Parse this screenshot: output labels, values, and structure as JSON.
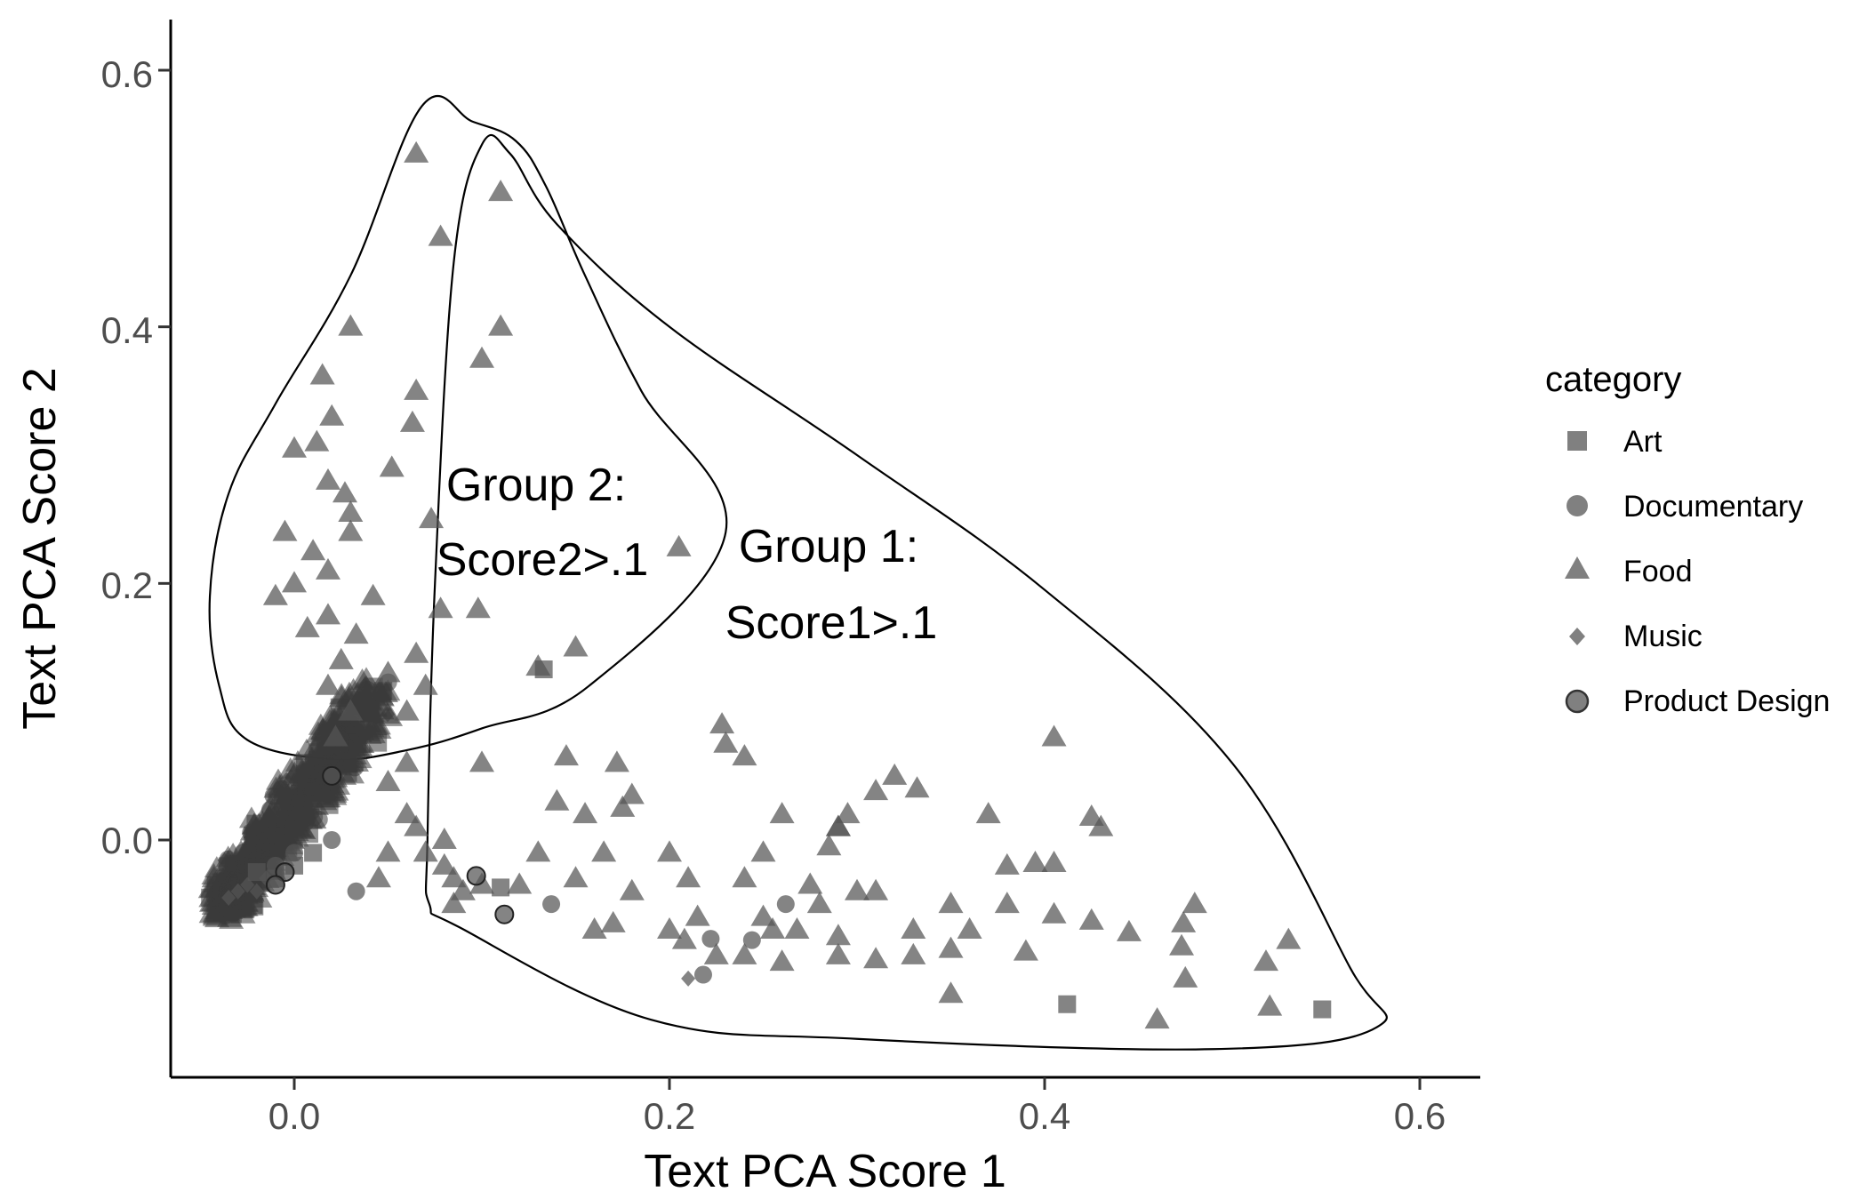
{
  "chart_data": {
    "type": "scatter",
    "xlabel": "Text PCA Score 1",
    "ylabel": "Text PCA Score 2",
    "xlim": [
      -0.07,
      0.63
    ],
    "ylim": [
      -0.18,
      0.64
    ],
    "xticks": [
      0.0,
      0.2,
      0.4,
      0.6
    ],
    "yticks": [
      0.0,
      0.2,
      0.4,
      0.6
    ],
    "xtick_labels": [
      "0.0",
      "0.2",
      "0.4",
      "0.6"
    ],
    "ytick_labels": [
      "0.0",
      "0.2",
      "0.4",
      "0.6"
    ],
    "grid": false,
    "legend": {
      "title": "category",
      "position": "right",
      "entries": [
        {
          "label": "Art",
          "shape": "square"
        },
        {
          "label": "Documentary",
          "shape": "circle"
        },
        {
          "label": "Food",
          "shape": "triangle"
        },
        {
          "label": "Music",
          "shape": "diamond"
        },
        {
          "label": "Product Design",
          "shape": "circle-outlined"
        }
      ]
    },
    "point_color": "#555555",
    "annotations": [
      {
        "text": "Group 2:",
        "x": 0.13,
        "y": 0.27
      },
      {
        "text": "Score2>.1",
        "x": 0.13,
        "y": 0.21
      },
      {
        "text": "Group 1:",
        "x": 0.275,
        "y": 0.22
      },
      {
        "text": "Score1>.1",
        "x": 0.275,
        "y": 0.16
      }
    ],
    "hulls": [
      {
        "name": "Group 2",
        "points": [
          [
            0.068,
            0.572
          ],
          [
            0.095,
            0.56
          ],
          [
            0.118,
            0.545
          ],
          [
            0.134,
            0.51
          ],
          [
            0.155,
            0.44
          ],
          [
            0.185,
            0.35
          ],
          [
            0.23,
            0.24
          ],
          [
            0.157,
            0.12
          ],
          [
            0.1,
            0.087
          ],
          [
            0.06,
            0.07
          ],
          [
            0.02,
            0.063
          ],
          [
            -0.025,
            0.078
          ],
          [
            -0.04,
            0.12
          ],
          [
            -0.045,
            0.19
          ],
          [
            -0.035,
            0.27
          ],
          [
            -0.01,
            0.34
          ],
          [
            0.03,
            0.44
          ]
        ]
      },
      {
        "name": "Group 1",
        "points": [
          [
            0.1,
            0.542
          ],
          [
            0.115,
            0.535
          ],
          [
            0.14,
            0.48
          ],
          [
            0.2,
            0.4
          ],
          [
            0.3,
            0.3
          ],
          [
            0.4,
            0.195
          ],
          [
            0.5,
            0.06
          ],
          [
            0.563,
            -0.1
          ],
          [
            0.577,
            -0.146
          ],
          [
            0.49,
            -0.163
          ],
          [
            0.3,
            -0.155
          ],
          [
            0.19,
            -0.14
          ],
          [
            0.088,
            -0.068
          ],
          [
            0.072,
            -0.05
          ],
          [
            0.071,
            0.0
          ],
          [
            0.075,
            0.2
          ],
          [
            0.085,
            0.45
          ]
        ]
      }
    ],
    "series": [
      {
        "name": "Art",
        "shape": "square",
        "points": [
          [
            0.412,
            -0.128
          ],
          [
            0.548,
            -0.132
          ],
          [
            0.133,
            0.133
          ],
          [
            0.11,
            -0.037
          ],
          [
            -0.01,
            -0.03
          ],
          [
            0.0,
            -0.02
          ],
          [
            -0.02,
            -0.025
          ],
          [
            0.01,
            -0.01
          ]
        ]
      },
      {
        "name": "Documentary",
        "shape": "circle",
        "points": [
          [
            0.033,
            -0.04
          ],
          [
            0.137,
            -0.05
          ],
          [
            0.222,
            -0.077
          ],
          [
            0.244,
            -0.078
          ],
          [
            0.262,
            -0.05
          ],
          [
            0.218,
            -0.105
          ],
          [
            0.0,
            -0.01
          ],
          [
            -0.01,
            -0.02
          ],
          [
            0.02,
            0.0
          ]
        ]
      },
      {
        "name": "Food",
        "shape": "triangle",
        "points": [
          [
            0.065,
            0.535
          ],
          [
            0.11,
            0.505
          ],
          [
            0.078,
            0.47
          ],
          [
            0.03,
            0.4
          ],
          [
            0.11,
            0.4
          ],
          [
            0.1,
            0.375
          ],
          [
            0.015,
            0.362
          ],
          [
            0.065,
            0.35
          ],
          [
            0.063,
            0.325
          ],
          [
            0.02,
            0.33
          ],
          [
            0.012,
            0.31
          ],
          [
            0.0,
            0.305
          ],
          [
            0.052,
            0.29
          ],
          [
            0.018,
            0.28
          ],
          [
            0.027,
            0.27
          ],
          [
            0.03,
            0.255
          ],
          [
            -0.005,
            0.24
          ],
          [
            0.03,
            0.24
          ],
          [
            0.073,
            0.25
          ],
          [
            0.01,
            0.225
          ],
          [
            0.018,
            0.21
          ],
          [
            0.205,
            0.228
          ],
          [
            0.0,
            0.2
          ],
          [
            -0.01,
            0.19
          ],
          [
            0.042,
            0.19
          ],
          [
            0.078,
            0.18
          ],
          [
            0.098,
            0.18
          ],
          [
            0.018,
            0.175
          ],
          [
            0.007,
            0.165
          ],
          [
            0.15,
            0.15
          ],
          [
            0.13,
            0.135
          ],
          [
            0.033,
            0.16
          ],
          [
            0.025,
            0.14
          ],
          [
            0.05,
            0.13
          ],
          [
            0.07,
            0.12
          ],
          [
            0.065,
            0.145
          ],
          [
            0.018,
            0.12
          ],
          [
            0.03,
            0.1
          ],
          [
            0.06,
            0.1
          ],
          [
            0.022,
            0.08
          ],
          [
            0.228,
            0.09
          ],
          [
            0.23,
            0.075
          ],
          [
            0.24,
            0.065
          ],
          [
            0.405,
            0.08
          ],
          [
            0.1,
            0.06
          ],
          [
            0.145,
            0.065
          ],
          [
            0.172,
            0.06
          ],
          [
            0.18,
            0.035
          ],
          [
            0.06,
            0.06
          ],
          [
            0.05,
            0.045
          ],
          [
            0.32,
            0.05
          ],
          [
            0.31,
            0.038
          ],
          [
            0.332,
            0.04
          ],
          [
            0.26,
            0.02
          ],
          [
            0.295,
            0.02
          ],
          [
            0.29,
            0.01
          ],
          [
            0.37,
            0.02
          ],
          [
            0.425,
            0.018
          ],
          [
            0.43,
            0.01
          ],
          [
            0.14,
            0.03
          ],
          [
            0.175,
            0.025
          ],
          [
            0.155,
            0.02
          ],
          [
            0.06,
            0.02
          ],
          [
            0.08,
            0.0
          ],
          [
            0.065,
            0.01
          ],
          [
            0.05,
            -0.01
          ],
          [
            0.08,
            -0.02
          ],
          [
            0.13,
            -0.01
          ],
          [
            0.165,
            -0.01
          ],
          [
            0.2,
            -0.01
          ],
          [
            0.25,
            -0.01
          ],
          [
            0.285,
            -0.005
          ],
          [
            0.29,
            0.01
          ],
          [
            0.085,
            -0.03
          ],
          [
            0.1,
            -0.035
          ],
          [
            0.12,
            -0.035
          ],
          [
            0.15,
            -0.03
          ],
          [
            0.18,
            -0.04
          ],
          [
            0.21,
            -0.03
          ],
          [
            0.24,
            -0.03
          ],
          [
            0.275,
            -0.035
          ],
          [
            0.3,
            -0.04
          ],
          [
            0.38,
            -0.02
          ],
          [
            0.395,
            -0.018
          ],
          [
            0.405,
            -0.018
          ],
          [
            0.215,
            -0.06
          ],
          [
            0.25,
            -0.06
          ],
          [
            0.28,
            -0.05
          ],
          [
            0.31,
            -0.04
          ],
          [
            0.35,
            -0.05
          ],
          [
            0.38,
            -0.05
          ],
          [
            0.405,
            -0.058
          ],
          [
            0.425,
            -0.063
          ],
          [
            0.48,
            -0.05
          ],
          [
            0.255,
            -0.07
          ],
          [
            0.268,
            -0.07
          ],
          [
            0.29,
            -0.075
          ],
          [
            0.33,
            -0.07
          ],
          [
            0.36,
            -0.07
          ],
          [
            0.445,
            -0.072
          ],
          [
            0.474,
            -0.065
          ],
          [
            0.208,
            -0.078
          ],
          [
            0.16,
            -0.07
          ],
          [
            0.17,
            -0.065
          ],
          [
            0.2,
            -0.07
          ],
          [
            0.24,
            -0.09
          ],
          [
            0.26,
            -0.095
          ],
          [
            0.29,
            -0.09
          ],
          [
            0.31,
            -0.093
          ],
          [
            0.33,
            -0.09
          ],
          [
            0.35,
            -0.085
          ],
          [
            0.39,
            -0.087
          ],
          [
            0.473,
            -0.083
          ],
          [
            0.53,
            -0.078
          ],
          [
            0.225,
            -0.09
          ],
          [
            0.518,
            -0.095
          ],
          [
            0.35,
            -0.12
          ],
          [
            0.475,
            -0.108
          ],
          [
            0.46,
            -0.14
          ],
          [
            0.52,
            -0.13
          ],
          [
            0.085,
            -0.05
          ],
          [
            0.09,
            -0.04
          ],
          [
            0.045,
            -0.03
          ],
          [
            0.07,
            -0.01
          ]
        ]
      },
      {
        "name": "Music",
        "shape": "diamond",
        "points": [
          [
            0.21,
            -0.108
          ],
          [
            -0.035,
            -0.045
          ],
          [
            -0.03,
            -0.04
          ],
          [
            -0.025,
            -0.035
          ],
          [
            -0.02,
            -0.04
          ],
          [
            -0.015,
            -0.03
          ]
        ]
      },
      {
        "name": "Product Design",
        "shape": "circle-outlined",
        "points": [
          [
            0.097,
            -0.028
          ],
          [
            0.112,
            -0.058
          ],
          [
            -0.005,
            -0.025
          ],
          [
            0.02,
            0.05
          ],
          [
            -0.01,
            -0.035
          ]
        ]
      }
    ]
  }
}
